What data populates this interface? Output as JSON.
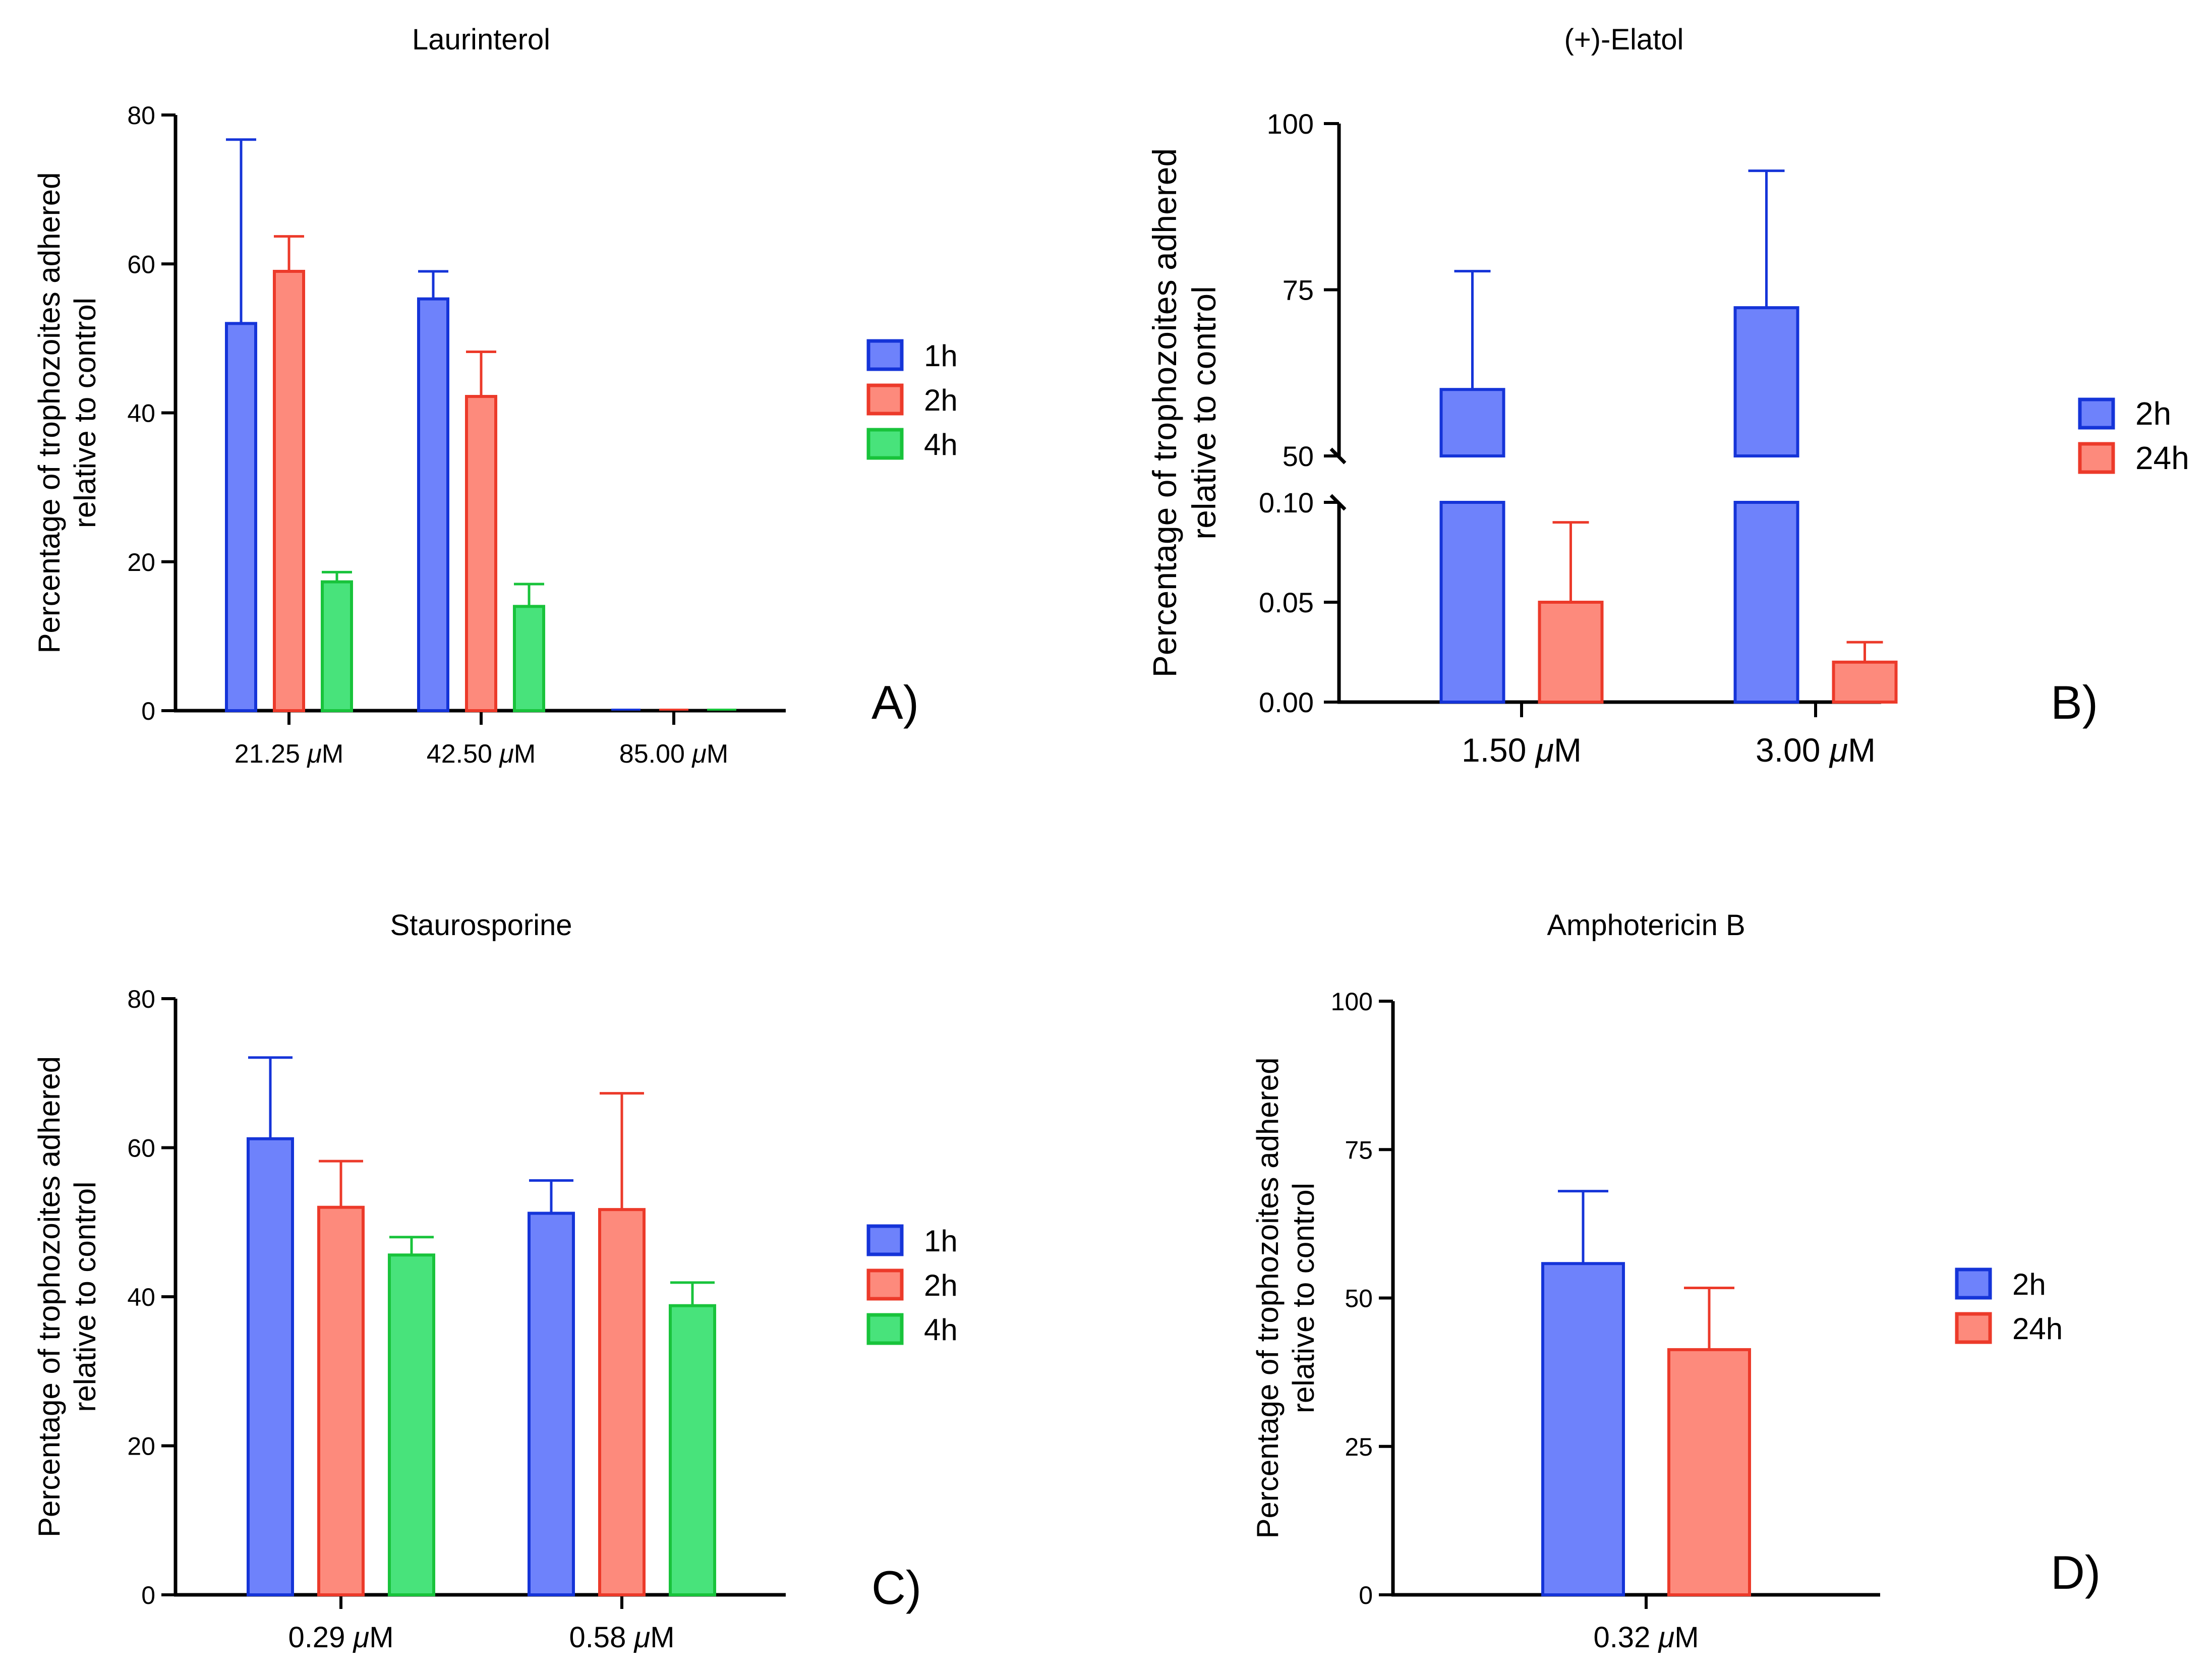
{
  "colors": {
    "blue_fill": "#6e82fb",
    "blue_stroke": "#1534d8",
    "red_fill": "#fd8a7c",
    "red_stroke": "#ec3a2a",
    "green_fill": "#48e37b",
    "green_stroke": "#18c33b",
    "axis": "#000000"
  },
  "chart_data": [
    {
      "panel": "A)",
      "type": "bar",
      "title": "Laurinterol",
      "ylabel_line1": "Percentage of trophozoites adhered",
      "ylabel_line2": "relative to control",
      "categories": [
        "21.25 μM",
        "42.50 μM",
        "85.00 μM"
      ],
      "ylim": [
        0,
        80
      ],
      "yticks": [
        0,
        20,
        40,
        60,
        80
      ],
      "ytick_labels": [
        "0",
        "20",
        "40",
        "60",
        "80"
      ],
      "series": [
        {
          "name": "1h",
          "color": "blue",
          "values": [
            52,
            55.3,
            0
          ],
          "errors": [
            24.7,
            3.7,
            0
          ]
        },
        {
          "name": "2h",
          "color": "red",
          "values": [
            59,
            42.2,
            0
          ],
          "errors": [
            4.7,
            6,
            0
          ]
        },
        {
          "name": "4h",
          "color": "green",
          "values": [
            17.3,
            14,
            0
          ],
          "errors": [
            1.3,
            3,
            0
          ]
        }
      ],
      "legend": "right"
    },
    {
      "panel": "B)",
      "type": "bar",
      "title": "(+)-Elatol",
      "ylabel_line1": "Percentage of trophozoites adhered",
      "ylabel_line2": "relative to control",
      "categories": [
        "1.50 μM",
        "3.00 μM"
      ],
      "broken_axis": true,
      "upper_ylim": [
        50,
        100
      ],
      "upper_yticks": [
        50,
        75,
        100
      ],
      "upper_ytick_labels": [
        "50",
        "75",
        "100"
      ],
      "lower_ylim": [
        0,
        0.1
      ],
      "lower_yticks": [
        0,
        0.05,
        0.1
      ],
      "lower_ytick_labels": [
        "0.00",
        "0.05",
        "0.10"
      ],
      "series": [
        {
          "name": "2h",
          "color": "blue",
          "values": [
            60,
            72.3
          ],
          "errors": [
            17.8,
            20.6
          ]
        },
        {
          "name": "24h",
          "color": "red",
          "values": [
            0.05,
            0.02
          ],
          "errors": [
            0.04,
            0.01
          ]
        }
      ],
      "legend": "right"
    },
    {
      "panel": "C)",
      "type": "bar",
      "title": "Staurosporine",
      "ylabel_line1": "Percentage of trophozoites adhered",
      "ylabel_line2": "relative to control",
      "categories": [
        "0.29 μM",
        "0.58 μM"
      ],
      "ylim": [
        0,
        80
      ],
      "yticks": [
        0,
        20,
        40,
        60,
        80
      ],
      "ytick_labels": [
        "0",
        "20",
        "40",
        "60",
        "80"
      ],
      "series": [
        {
          "name": "1h",
          "color": "blue",
          "values": [
            61.2,
            51.2
          ],
          "errors": [
            10.9,
            4.4
          ]
        },
        {
          "name": "2h",
          "color": "red",
          "values": [
            52,
            51.7
          ],
          "errors": [
            6.2,
            15.6
          ]
        },
        {
          "name": "4h",
          "color": "green",
          "values": [
            45.6,
            38.8
          ],
          "errors": [
            2.4,
            3.1
          ]
        }
      ],
      "legend": "right"
    },
    {
      "panel": "D)",
      "type": "bar",
      "title": "Amphotericin B",
      "ylabel_line1": "Percentage of trophozoites adhered",
      "ylabel_line2": "relative to control",
      "categories": [
        "0.32 μM"
      ],
      "ylim": [
        0,
        100
      ],
      "yticks": [
        0,
        25,
        50,
        75,
        100
      ],
      "ytick_labels": [
        "0",
        "25",
        "50",
        "75",
        "100"
      ],
      "series": [
        {
          "name": "2h",
          "color": "blue",
          "values": [
            55.8
          ],
          "errors": [
            12.2
          ]
        },
        {
          "name": "24h",
          "color": "red",
          "values": [
            41.3
          ],
          "errors": [
            10.4
          ]
        }
      ],
      "legend": "right"
    }
  ]
}
